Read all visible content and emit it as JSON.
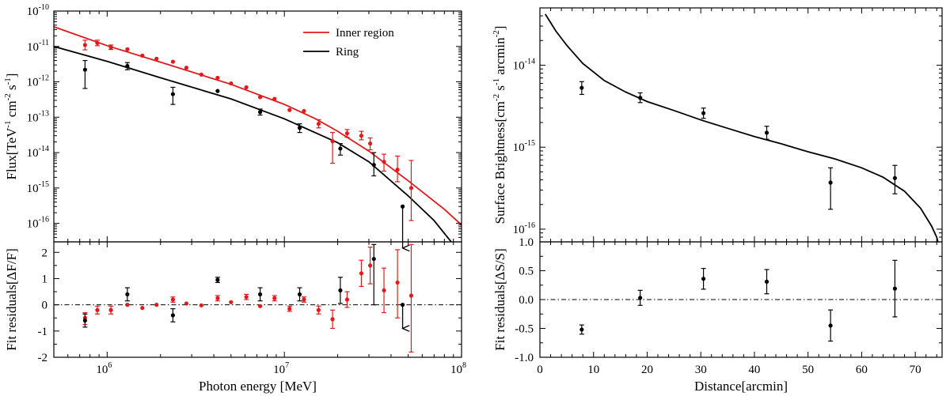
{
  "chart_data": [
    {
      "panel": "left-top",
      "type": "scatter",
      "xscale": "log",
      "yscale": "log",
      "xlim": [
        500000,
        100000000
      ],
      "ylim": [
        3e-17,
        1e-10
      ],
      "ylabel": "Flux[TeV-1 cm-2 s-1]",
      "ylabel_parts": [
        "Flux[TeV",
        "-1",
        " cm",
        "-2",
        " s",
        "-1",
        "]"
      ],
      "ytick_labels": [
        {
          "value": 1e-10,
          "mant": "10",
          "exp": "-10"
        },
        {
          "value": 1e-11,
          "mant": "10",
          "exp": "-11"
        },
        {
          "value": 1e-12,
          "mant": "10",
          "exp": "-12"
        },
        {
          "value": 1e-13,
          "mant": "10",
          "exp": "-13"
        },
        {
          "value": 1e-14,
          "mant": "10",
          "exp": "-14"
        },
        {
          "value": 1e-15,
          "mant": "10",
          "exp": "-15"
        },
        {
          "value": 1e-16,
          "mant": "10",
          "exp": "-16"
        }
      ],
      "legend": {
        "placement": "top-right",
        "entries": [
          {
            "name": "Inner region",
            "color": "#e3191c"
          },
          {
            "name": "Ring",
            "color": "#000000"
          }
        ]
      },
      "series": [
        {
          "name": "Inner region",
          "color": "#e3191c",
          "points": [
            {
              "x": 750000,
              "y": 1.1e-11,
              "lo": 8e-12,
              "hi": 1.5e-11
            },
            {
              "x": 880000,
              "y": 1.25e-11,
              "lo": 1.05e-11,
              "hi": 1.5e-11
            },
            {
              "x": 1050000,
              "y": 9.5e-12,
              "lo": 8.2e-12,
              "hi": 1.1e-11
            },
            {
              "x": 1300000,
              "y": 8.3e-12
            },
            {
              "x": 1580000,
              "y": 5.5e-12
            },
            {
              "x": 1900000,
              "y": 4.5e-12
            },
            {
              "x": 2350000,
              "y": 3.7e-12
            },
            {
              "x": 2800000,
              "y": 2.5e-12
            },
            {
              "x": 3400000,
              "y": 1.6e-12
            },
            {
              "x": 4200000,
              "y": 1.3e-12
            },
            {
              "x": 5000000,
              "y": 9e-13
            },
            {
              "x": 6100000,
              "y": 7e-13
            },
            {
              "x": 7300000,
              "y": 3.7e-13
            },
            {
              "x": 8800000,
              "y": 3.3e-13
            },
            {
              "x": 10700000,
              "y": 1.6e-13
            },
            {
              "x": 12900000,
              "y": 1.5e-13
            },
            {
              "x": 15600000,
              "y": 6.5e-14,
              "lo": 5e-14,
              "hi": 8.5e-14
            },
            {
              "x": 18700000,
              "y": 2.1e-14,
              "lo": 5e-15,
              "hi": 3.7e-14
            },
            {
              "x": 22600000,
              "y": 3.5e-14,
              "lo": 2.7e-14,
              "hi": 4.5e-14
            },
            {
              "x": 27200000,
              "y": 3e-14,
              "lo": 2.3e-14,
              "hi": 4e-14
            },
            {
              "x": 30500000,
              "y": 1.8e-14,
              "lo": 1.2e-14,
              "hi": 2.6e-14
            },
            {
              "x": 36500000,
              "y": 5.5e-15,
              "lo": 3e-15,
              "hi": 9e-15
            },
            {
              "x": 43500000,
              "y": 3.3e-15,
              "lo": 1.5e-15,
              "hi": 8e-15
            },
            {
              "x": 52000000,
              "y": 1e-15,
              "lo": 1.2e-16,
              "hi": 6e-15
            }
          ],
          "model_curve": {
            "x": [
              500000,
              1000000,
              2000000,
              5000000,
              10000000,
              15000000,
              20000000,
              30000000,
              50000000,
              80000000,
              100000000
            ],
            "y": [
              3.6e-11,
              1.05e-11,
              3.6e-12,
              8.5e-13,
              2.3e-13,
              9e-14,
              4e-14,
              1.1e-14,
              1.6e-15,
              2.5e-16,
              9e-17
            ]
          }
        },
        {
          "name": "Ring",
          "color": "#000000",
          "points": [
            {
              "x": 750000,
              "y": 2.2e-12,
              "lo": 6.5e-13,
              "hi": 4e-12
            },
            {
              "x": 1300000,
              "y": 2.8e-12,
              "lo": 2.2e-12,
              "hi": 3.5e-12
            },
            {
              "x": 2350000,
              "y": 4.5e-13,
              "lo": 2.3e-13,
              "hi": 7e-13
            },
            {
              "x": 4200000,
              "y": 5.5e-13
            },
            {
              "x": 7300000,
              "y": 1.4e-13,
              "lo": 1.15e-13,
              "hi": 1.7e-13
            },
            {
              "x": 12200000,
              "y": 5e-14,
              "lo": 3.7e-14,
              "hi": 6.5e-14
            },
            {
              "x": 20700000,
              "y": 1.3e-14,
              "lo": 8.5e-15,
              "hi": 1.8e-14
            },
            {
              "x": 32000000,
              "y": 4.5e-15,
              "lo": 2.2e-15,
              "hi": 1e-14
            },
            {
              "x": 46500000,
              "y": 3e-16,
              "upper_limit": true,
              "arrow_to": 2e-17
            }
          ],
          "model_curve": {
            "x": [
              500000,
              1000000,
              2000000,
              5000000,
              10000000,
              20000000,
              30000000,
              50000000,
              70000000,
              90000000
            ],
            "y": [
              1e-11,
              3.8e-12,
              1.3e-12,
              3.3e-13,
              9e-14,
              1.9e-14,
              5.5e-15,
              6e-16,
              1.2e-16,
              2.5e-17
            ]
          }
        }
      ]
    },
    {
      "panel": "left-bottom",
      "type": "scatter",
      "xscale": "log",
      "xlim": [
        500000,
        100000000
      ],
      "ylim": [
        -2,
        2.4
      ],
      "xlabel": "Photon energy [MeV]",
      "ylabel": "Fit residuals[ΔF/F]",
      "yticks": [
        -2,
        -1,
        0,
        1,
        2
      ],
      "ytick_labels": [
        "-2",
        "-1",
        "0",
        "1",
        "2"
      ],
      "xtick_labels": [
        {
          "value": 1000000,
          "mant": "10",
          "exp": "6"
        },
        {
          "value": 10000000,
          "mant": "10",
          "exp": "7"
        },
        {
          "value": 100000000,
          "mant": "10",
          "exp": "8"
        }
      ],
      "reference_line": 0,
      "series": [
        {
          "name": "Inner region",
          "color": "#e3191c",
          "points": [
            {
              "x": 750000,
              "y": -0.5,
              "lo": -0.75,
              "hi": -0.3
            },
            {
              "x": 880000,
              "y": -0.2,
              "lo": -0.35,
              "hi": -0.05
            },
            {
              "x": 1050000,
              "y": -0.2,
              "lo": -0.35,
              "hi": -0.05
            },
            {
              "x": 1300000,
              "y": 0.0
            },
            {
              "x": 1580000,
              "y": -0.12
            },
            {
              "x": 1900000,
              "y": 0.0
            },
            {
              "x": 2350000,
              "y": 0.2,
              "lo": 0.1,
              "hi": 0.3
            },
            {
              "x": 2800000,
              "y": 0.05
            },
            {
              "x": 3400000,
              "y": -0.02
            },
            {
              "x": 4200000,
              "y": 0.25,
              "lo": 0.15,
              "hi": 0.35
            },
            {
              "x": 5000000,
              "y": 0.1
            },
            {
              "x": 6100000,
              "y": 0.3,
              "lo": 0.2,
              "hi": 0.4
            },
            {
              "x": 7300000,
              "y": -0.05
            },
            {
              "x": 8800000,
              "y": 0.25,
              "lo": 0.15,
              "hi": 0.35
            },
            {
              "x": 10700000,
              "y": -0.15,
              "lo": -0.25,
              "hi": -0.05
            },
            {
              "x": 12900000,
              "y": 0.2,
              "lo": 0.1,
              "hi": 0.3
            },
            {
              "x": 15600000,
              "y": -0.2,
              "lo": -0.35,
              "hi": -0.05
            },
            {
              "x": 18700000,
              "y": -0.55,
              "lo": -0.9,
              "hi": -0.2
            },
            {
              "x": 22600000,
              "y": 0.2,
              "lo": -0.1,
              "hi": 0.5
            },
            {
              "x": 27200000,
              "y": 1.2,
              "lo": 0.7,
              "hi": 1.7
            },
            {
              "x": 30500000,
              "y": 1.5,
              "lo": 0.8,
              "hi": 2.2
            },
            {
              "x": 36500000,
              "y": 0.55,
              "lo": -0.3,
              "hi": 1.4
            },
            {
              "x": 43500000,
              "y": 0.85,
              "lo": -0.5,
              "hi": 2.1
            },
            {
              "x": 52000000,
              "y": 0.35,
              "lo": -1.8,
              "hi": 2.3
            }
          ]
        },
        {
          "name": "Ring",
          "color": "#000000",
          "points": [
            {
              "x": 750000,
              "y": -0.6,
              "lo": -0.85,
              "hi": -0.35
            },
            {
              "x": 1300000,
              "y": 0.4,
              "lo": 0.15,
              "hi": 0.65
            },
            {
              "x": 2350000,
              "y": -0.4,
              "lo": -0.65,
              "hi": -0.15
            },
            {
              "x": 4200000,
              "y": 0.95,
              "lo": 0.85,
              "hi": 1.05
            },
            {
              "x": 7300000,
              "y": 0.4,
              "lo": 0.15,
              "hi": 0.65
            },
            {
              "x": 12200000,
              "y": 0.4,
              "lo": 0.15,
              "hi": 0.65
            },
            {
              "x": 20700000,
              "y": 0.55,
              "lo": 0.05,
              "hi": 1.05
            },
            {
              "x": 32000000,
              "y": 1.75,
              "lo": 0.0,
              "hi": 2.3
            },
            {
              "x": 46500000,
              "y": 0.0,
              "upper_limit": true,
              "arrow_to": -0.9
            }
          ]
        }
      ]
    },
    {
      "panel": "right-top",
      "type": "scatter",
      "yscale": "log",
      "xlim": [
        0,
        75
      ],
      "ylim": [
        7e-17,
        5e-14
      ],
      "ylabel": "Surface Brightness[cm-2 s-1 arcmin-2]",
      "ylabel_parts": [
        "Surface Brightness[cm",
        "-2",
        " s",
        "-1",
        " arcmin",
        "-2",
        "]"
      ],
      "ytick_labels": [
        {
          "value": 1e-14,
          "mant": "10",
          "exp": "-14"
        },
        {
          "value": 1e-15,
          "mant": "10",
          "exp": "-15"
        },
        {
          "value": 1e-16,
          "mant": "10",
          "exp": "-16"
        }
      ],
      "series": [
        {
          "name": "",
          "color": "#000000",
          "points": [
            {
              "x": 7.8,
              "y": 5.3e-15,
              "lo": 4.4e-15,
              "hi": 6.3e-15
            },
            {
              "x": 18.7,
              "y": 4e-15,
              "lo": 3.5e-15,
              "hi": 4.6e-15
            },
            {
              "x": 30.5,
              "y": 2.6e-15,
              "lo": 2.25e-15,
              "hi": 3e-15
            },
            {
              "x": 42.3,
              "y": 1.5e-15,
              "lo": 1.25e-15,
              "hi": 1.8e-15
            },
            {
              "x": 54.2,
              "y": 3.7e-16,
              "lo": 1.75e-16,
              "hi": 5.6e-16
            },
            {
              "x": 66.2,
              "y": 4.2e-16,
              "lo": 2.7e-16,
              "hi": 6e-16
            }
          ],
          "model_curve": {
            "x": [
              1,
              3,
              5,
              8,
              12,
              16,
              20,
              25,
              30,
              35,
              40,
              45,
              50,
              55,
              60,
              64,
              68,
              71,
              73,
              74,
              74.5
            ],
            "y": [
              4.2e-14,
              2.6e-14,
              1.75e-14,
              1.05e-14,
              6.5e-15,
              4.7e-15,
              3.6e-15,
              2.8e-15,
              2.15e-15,
              1.7e-15,
              1.35e-15,
              1.1e-15,
              8.8e-16,
              7.2e-16,
              5.6e-16,
              4.3e-16,
              2.9e-16,
              1.8e-16,
              1.1e-16,
              8e-17,
              6e-17
            ]
          }
        }
      ]
    },
    {
      "panel": "right-bottom",
      "type": "scatter",
      "xlim": [
        0,
        75
      ],
      "ylim": [
        -1.0,
        1.0
      ],
      "xlabel": "Distance[arcmin]",
      "ylabel": "Fit residuals[ΔS/S]",
      "xticks": [
        0,
        10,
        20,
        30,
        40,
        50,
        60,
        70
      ],
      "xtick_labels": [
        "0",
        "10",
        "20",
        "30",
        "40",
        "50",
        "60",
        "70"
      ],
      "yticks": [
        -1.0,
        -0.5,
        0.0,
        0.5,
        1.0
      ],
      "ytick_labels": [
        "-1.0",
        "-0.5",
        "0.0",
        "0.5",
        "1.0"
      ],
      "reference_line": 0,
      "series": [
        {
          "name": "",
          "color": "#000000",
          "points": [
            {
              "x": 7.8,
              "y": -0.52,
              "lo": -0.6,
              "hi": -0.44
            },
            {
              "x": 18.7,
              "y": 0.03,
              "lo": -0.1,
              "hi": 0.16
            },
            {
              "x": 30.5,
              "y": 0.36,
              "lo": 0.18,
              "hi": 0.54
            },
            {
              "x": 42.3,
              "y": 0.31,
              "lo": 0.1,
              "hi": 0.52
            },
            {
              "x": 54.2,
              "y": -0.45,
              "lo": -0.72,
              "hi": -0.18
            },
            {
              "x": 66.2,
              "y": 0.19,
              "lo": -0.3,
              "hi": 0.68
            }
          ]
        }
      ]
    }
  ]
}
